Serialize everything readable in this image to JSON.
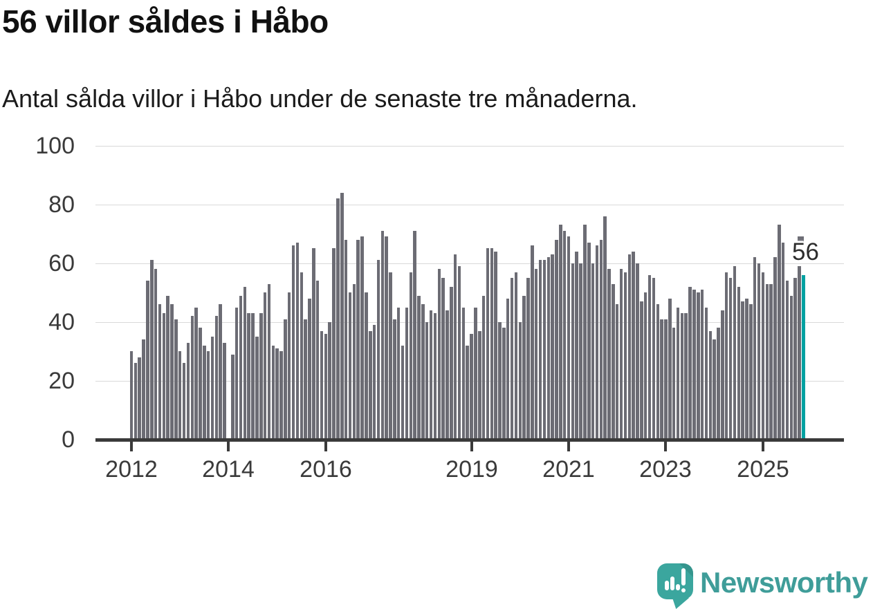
{
  "header": {
    "title": "56 villor såldes i Håbo",
    "subtitle": "Antal sålda villor i Håbo under de senaste tre månaderna."
  },
  "chart_data": {
    "type": "bar",
    "title": "56 villor såldes i Håbo",
    "subtitle": "Antal sålda villor i Håbo under de senaste tre månaderna.",
    "ylabel": "",
    "xlabel": "",
    "unit": "sålda villor (rullande tre månader)",
    "frequency": "monthly",
    "start_month": "2012-01",
    "end_month": "2025-11",
    "ylim": [
      0,
      100
    ],
    "y_ticks": [
      0,
      20,
      40,
      60,
      80,
      100
    ],
    "grid": "horizontal",
    "x_ticks": [
      {
        "label": "2012",
        "month_index": 0
      },
      {
        "label": "2014",
        "month_index": 24
      },
      {
        "label": "2016",
        "month_index": 48
      },
      {
        "label": "2019",
        "month_index": 84
      },
      {
        "label": "2021",
        "month_index": 108
      },
      {
        "label": "2023",
        "month_index": 132
      },
      {
        "label": "2025",
        "month_index": 156
      }
    ],
    "values": [
      30,
      26,
      28,
      34,
      54,
      61,
      58,
      46,
      43,
      49,
      46,
      41,
      30,
      26,
      33,
      42,
      45,
      38,
      32,
      30,
      35,
      42,
      46,
      33,
      null,
      29,
      45,
      49,
      52,
      43,
      43,
      35,
      43,
      50,
      53,
      32,
      31,
      30,
      41,
      50,
      66,
      67,
      57,
      41,
      48,
      65,
      54,
      37,
      36,
      40,
      65,
      82,
      84,
      68,
      50,
      53,
      68,
      69,
      50,
      37,
      39,
      61,
      71,
      69,
      57,
      41,
      45,
      32,
      45,
      57,
      71,
      49,
      46,
      40,
      44,
      43,
      58,
      55,
      44,
      52,
      63,
      59,
      45,
      32,
      36,
      45,
      37,
      49,
      65,
      65,
      64,
      40,
      38,
      48,
      55,
      57,
      40,
      49,
      55,
      66,
      58,
      61,
      61,
      62,
      63,
      68,
      73,
      71,
      69,
      60,
      64,
      60,
      73,
      67,
      60,
      66,
      68,
      76,
      58,
      53,
      46,
      58,
      57,
      63,
      64,
      60,
      47,
      50,
      56,
      55,
      46,
      41,
      41,
      48,
      38,
      45,
      43,
      43,
      52,
      51,
      50,
      51,
      45,
      37,
      34,
      38,
      44,
      57,
      55,
      59,
      52,
      47,
      48,
      46,
      62,
      60,
      57,
      53,
      53,
      62,
      73,
      67,
      54,
      49,
      55,
      59,
      56
    ],
    "bar_color": "#6C6C74",
    "highlight_color": "#00A1A1",
    "highlight_index": 166,
    "annotation": {
      "text": "56",
      "value": 56
    }
  },
  "footer": {
    "brand": "Newsworthy",
    "logo_icon": "newsworthy-speech-bubble-chart-icon",
    "brand_color": "#3F9D99",
    "icon_color": "#3BA69E"
  }
}
